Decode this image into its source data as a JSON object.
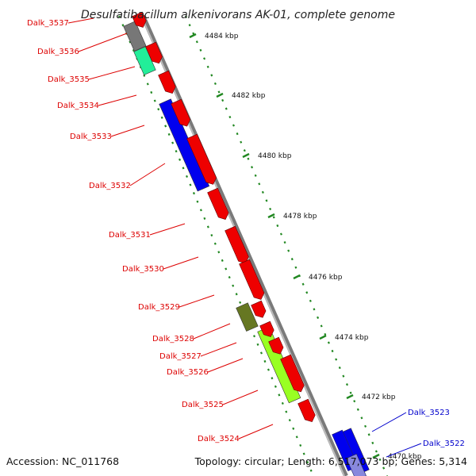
{
  "header": {
    "title": "Desulfatibacillum alkenivorans AK-01, complete genome"
  },
  "footer": {
    "accession": "Accession: NC_011768",
    "summary": "Topology: circular; Length: 6,517,073 bp; Genes: 5,314"
  },
  "colors": {
    "backbone": "#888888",
    "forward_gene": "#ee0000",
    "reverse_gene_blue": "#0000ee",
    "label_red": "#dd0000",
    "label_blue": "#0000cc",
    "tick_green": "#228822",
    "cds_green": "#99ff22",
    "cds_olive": "#667722",
    "cds_teal": "#22ee99",
    "cds_gray": "#777777"
  },
  "scale": {
    "ticks": [
      {
        "label": "4484 kbp"
      },
      {
        "label": "4482 kbp"
      },
      {
        "label": "4480 kbp"
      },
      {
        "label": "4478 kbp"
      },
      {
        "label": "4476 kbp"
      },
      {
        "label": "4474 kbp"
      },
      {
        "label": "4472 kbp"
      },
      {
        "label": "4470 kbp"
      }
    ]
  },
  "genes": [
    {
      "label": "Dalk_3537",
      "strand": "reverse"
    },
    {
      "label": "Dalk_3536",
      "strand": "reverse"
    },
    {
      "label": "Dalk_3535",
      "strand": "reverse"
    },
    {
      "label": "Dalk_3534",
      "strand": "reverse"
    },
    {
      "label": "Dalk_3533",
      "strand": "reverse"
    },
    {
      "label": "Dalk_3532",
      "strand": "reverse"
    },
    {
      "label": "Dalk_3531",
      "strand": "reverse"
    },
    {
      "label": "Dalk_3530",
      "strand": "reverse"
    },
    {
      "label": "Dalk_3529",
      "strand": "reverse"
    },
    {
      "label": "Dalk_3528",
      "strand": "reverse"
    },
    {
      "label": "Dalk_3527",
      "strand": "reverse"
    },
    {
      "label": "Dalk_3526",
      "strand": "reverse"
    },
    {
      "label": "Dalk_3525",
      "strand": "reverse"
    },
    {
      "label": "Dalk_3524",
      "strand": "reverse"
    },
    {
      "label": "Dalk_3523",
      "strand": "forward"
    },
    {
      "label": "Dalk_3522",
      "strand": "forward"
    }
  ]
}
